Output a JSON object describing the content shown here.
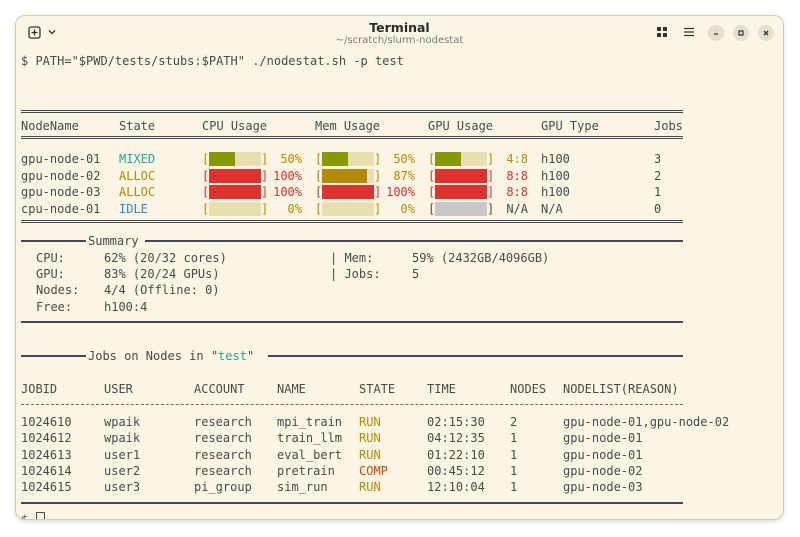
{
  "window": {
    "title": "Terminal",
    "subtitle": "~/scratch/slurm-nodestat"
  },
  "colors": {
    "background": "#fbf5e3",
    "green": "#859900",
    "olive": "#b58900",
    "red": "#dc322f",
    "cyan": "#2aa198",
    "blue": "#268bd2",
    "orange": "#cb4b16",
    "gray_bar": "#c8c8c8"
  },
  "icons": {
    "new_tab": "plus-square-icon",
    "menu_dropdown": "chevron-down-icon",
    "grid": "grid-icon",
    "hamburger": "hamburger-menu-icon",
    "minimize": "minimize-icon",
    "maximize": "maximize-icon",
    "close": "close-icon"
  },
  "command": "$ PATH=\"$PWD/tests/stubs:$PATH\" ./nodestat.sh -p test",
  "nodes": {
    "headers": [
      "NodeName",
      "State",
      "CPU Usage",
      "Mem Usage",
      "GPU Usage",
      "GPU Type",
      "Jobs"
    ],
    "rows": [
      {
        "name": "gpu-node-01",
        "state": "MIXED",
        "cpu_pct": "50%",
        "cpu_frac": 0.5,
        "mem_pct": "50%",
        "mem_frac": 0.5,
        "gpu": "4:8",
        "gpu_frac": 0.5,
        "gpu_type": "h100",
        "jobs": "3"
      },
      {
        "name": "gpu-node-02",
        "state": "ALLOC",
        "cpu_pct": "100%",
        "cpu_frac": 1.0,
        "mem_pct": "87%",
        "mem_frac": 0.87,
        "gpu": "8:8",
        "gpu_frac": 1.0,
        "gpu_type": "h100",
        "jobs": "2"
      },
      {
        "name": "gpu-node-03",
        "state": "ALLOC",
        "cpu_pct": "100%",
        "cpu_frac": 1.0,
        "mem_pct": "100%",
        "mem_frac": 1.0,
        "gpu": "8:8",
        "gpu_frac": 1.0,
        "gpu_type": "h100",
        "jobs": "1"
      },
      {
        "name": "cpu-node-01",
        "state": "IDLE",
        "cpu_pct": "0%",
        "cpu_frac": 0.0,
        "mem_pct": "0%",
        "mem_frac": 0.0,
        "gpu": "N/A",
        "gpu_frac": null,
        "gpu_type": "N/A",
        "jobs": "0"
      }
    ]
  },
  "summary": {
    "title": "Summary",
    "cpu_label": "CPU:",
    "cpu_value": "62% (20/32 cores)",
    "gpu_label": "GPU:",
    "gpu_value": "83% (20/24 GPUs)",
    "nodes_label": "Nodes:",
    "nodes_value": "4/4 (Offline: 0)",
    "free_label": "Free:",
    "free_value": "h100:4",
    "mem_label": "| Mem:",
    "mem_value": "59% (2432GB/4096GB)",
    "jobs_label": "| Jobs:",
    "jobs_value": "5"
  },
  "jobs_section": {
    "title_prefix": "Jobs on Nodes in \"",
    "partition": "test",
    "title_suffix": "\"",
    "headers": [
      "JOBID",
      "USER",
      "ACCOUNT",
      "NAME",
      "STATE",
      "TIME",
      "NODES",
      "NODELIST(REASON)"
    ],
    "rows": [
      {
        "jobid": "1024610",
        "user": "wpaik",
        "account": "research",
        "name": "mpi_train",
        "state": "RUN",
        "time": "02:15:30",
        "nodes": "2",
        "nodelist": "gpu-node-01,gpu-node-02"
      },
      {
        "jobid": "1024612",
        "user": "wpaik",
        "account": "research",
        "name": "train_llm",
        "state": "RUN",
        "time": "04:12:35",
        "nodes": "1",
        "nodelist": "gpu-node-01"
      },
      {
        "jobid": "1024613",
        "user": "user1",
        "account": "research",
        "name": "eval_bert",
        "state": "RUN",
        "time": "01:22:10",
        "nodes": "1",
        "nodelist": "gpu-node-01"
      },
      {
        "jobid": "1024614",
        "user": "user2",
        "account": "research",
        "name": "pretrain",
        "state": "COMP",
        "time": "00:45:12",
        "nodes": "1",
        "nodelist": "gpu-node-02"
      },
      {
        "jobid": "1024615",
        "user": "user3",
        "account": "pi_group",
        "name": "sim_run",
        "state": "RUN",
        "time": "12:10:04",
        "nodes": "1",
        "nodelist": "gpu-node-03"
      }
    ]
  },
  "prompt": "$"
}
